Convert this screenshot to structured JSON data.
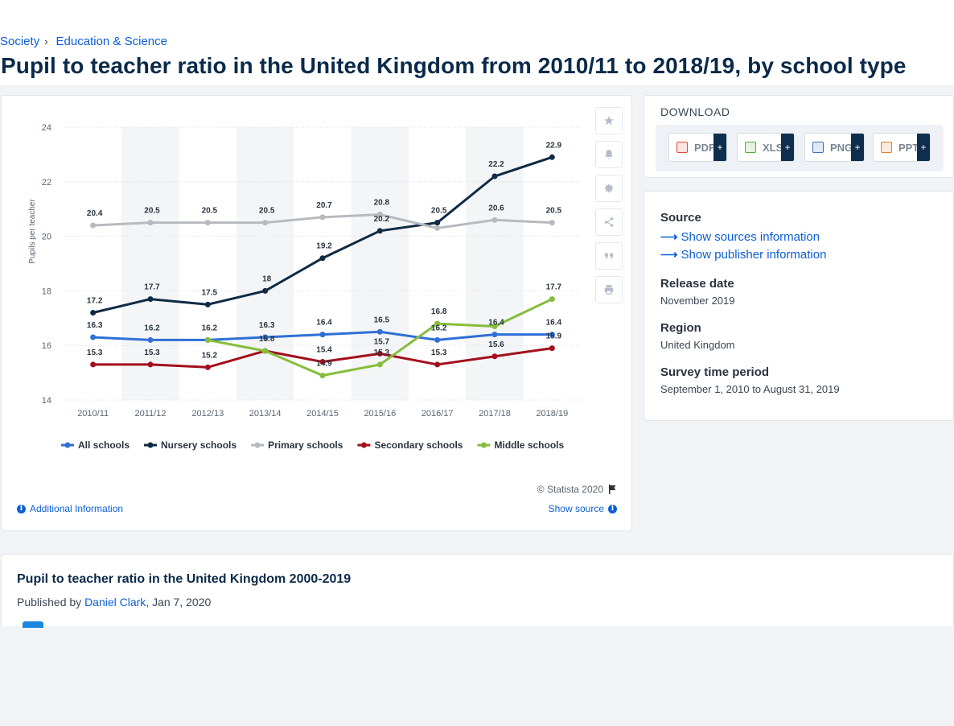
{
  "breadcrumb": {
    "items": [
      "Society",
      "Education & Science"
    ],
    "separator": "›"
  },
  "page_title": "Pupil to teacher ratio in the United Kingdom from 2010/11 to 2018/19, by school type",
  "chart_footer": {
    "copyright": "© Statista 2020",
    "additional_info": "Additional Information",
    "show_source": "Show source"
  },
  "download": {
    "title": "DOWNLOAD",
    "buttons": [
      {
        "label": "PDF",
        "icon": "pdf-file-icon",
        "color": "#e04a3a"
      },
      {
        "label": "XLS",
        "icon": "xls-file-icon",
        "color": "#5aa833"
      },
      {
        "label": "PNG",
        "icon": "png-file-icon",
        "color": "#3b6fb6"
      },
      {
        "label": "PPT",
        "icon": "ppt-file-icon",
        "color": "#e27b2c"
      }
    ],
    "plus": "+"
  },
  "meta": {
    "source_title": "Source",
    "show_sources": "Show sources information",
    "show_publisher": "Show publisher information",
    "release_title": "Release date",
    "release_value": "November 2019",
    "region_title": "Region",
    "region_value": "United Kingdom",
    "survey_title": "Survey time period",
    "survey_value": "September 1, 2010 to August 31, 2019"
  },
  "related": {
    "title": "Pupil to teacher ratio in the United Kingdom 2000-2019",
    "published_by_prefix": "Published by",
    "author": "Daniel Clark",
    "date": ", Jan 7, 2020"
  },
  "tools": [
    "star-icon",
    "bell-icon",
    "gear-icon",
    "share-icon",
    "quote-icon",
    "print-icon"
  ],
  "chart_data": {
    "type": "line",
    "ylabel": "Pupils per teacher",
    "xlabel": "",
    "ylim": [
      14,
      24
    ],
    "yticks": [
      14,
      16,
      18,
      20,
      22,
      24
    ],
    "legend": "bottom",
    "grid": true,
    "categories": [
      "2010/11",
      "2011/12",
      "2012/13",
      "2013/14",
      "2014/15",
      "2015/16",
      "2016/17",
      "2017/18",
      "2018/19"
    ],
    "series": [
      {
        "name": "All schools",
        "color": "#2f6fd6",
        "values": [
          16.3,
          16.2,
          16.2,
          16.3,
          16.4,
          16.5,
          16.2,
          16.4,
          16.4
        ]
      },
      {
        "name": "Nursery schools",
        "color": "#0f2a45",
        "values": [
          17.2,
          17.7,
          17.5,
          18,
          19.2,
          20.2,
          20.5,
          22.2,
          22.9
        ]
      },
      {
        "name": "Primary schools",
        "color": "#b7babf",
        "values": [
          20.4,
          20.5,
          20.5,
          20.5,
          20.7,
          20.8,
          20.3,
          20.6,
          20.5
        ]
      },
      {
        "name": "Secondary schools",
        "color": "#a30f1c",
        "values": [
          15.3,
          15.3,
          15.2,
          15.8,
          15.4,
          15.7,
          15.3,
          15.6,
          15.9
        ]
      },
      {
        "name": "Middle schools",
        "color": "#86bd3b",
        "values": [
          null,
          null,
          16.2,
          15.8,
          14.9,
          15.3,
          16.8,
          16.7,
          17.7
        ]
      }
    ],
    "point_labels": [
      [
        "16.3",
        "16.2",
        "16.2",
        "16.3",
        "16.4",
        "16.5",
        "16.2",
        "16.4",
        "16.4"
      ],
      [
        "17.2",
        "17.7",
        "17.5",
        "18",
        "19.2",
        "20.2",
        "20.5",
        "22.2",
        "22.9"
      ],
      [
        "20.4",
        "20.5",
        "20.5",
        "20.5",
        "20.7",
        "20.8",
        "",
        "20.6",
        "20.5"
      ],
      [
        "15.3",
        "15.3",
        "15.2",
        "",
        "15.4",
        "15.7",
        "15.3",
        "15.6",
        "15.9"
      ],
      [
        "",
        "",
        "",
        "15.8",
        "14.9",
        "15.3",
        "16.8",
        "",
        "17.7"
      ]
    ]
  }
}
